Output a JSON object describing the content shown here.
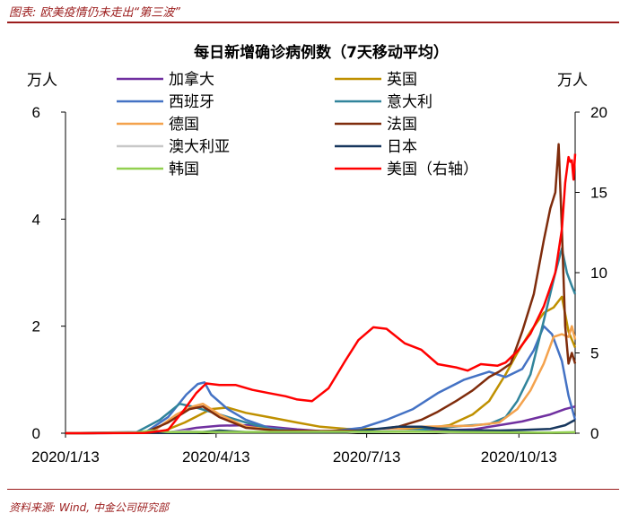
{
  "header": {
    "title": "图表: 欧美疫情仍未走出“第三波”"
  },
  "footer": {
    "source": "资料来源: Wind, 中金公司研究部"
  },
  "chart_data": {
    "type": "line",
    "title": "每日新增确诊病例数（7天移动平均）",
    "y_left_unit": "万人",
    "y_right_unit": "万人",
    "x_ticks": [
      "2020/1/13",
      "2020/4/13",
      "2020/7/13",
      "2020/10/13"
    ],
    "x_range": [
      "2020-01-13",
      "2020-11-16"
    ],
    "y_left_ticks": [
      0,
      2,
      4,
      6
    ],
    "y_right_ticks": [
      0,
      5,
      10,
      15,
      20
    ],
    "ylim_left": [
      0,
      6
    ],
    "ylim_right": [
      0,
      20
    ],
    "legend_position": "top",
    "series": [
      {
        "name": "加拿大",
        "color": "#7030a0",
        "axis": "left",
        "points": [
          [
            "2020-01-13",
            0
          ],
          [
            "2020-03-15",
            0.01
          ],
          [
            "2020-04-01",
            0.1
          ],
          [
            "2020-04-15",
            0.14
          ],
          [
            "2020-05-01",
            0.15
          ],
          [
            "2020-05-15",
            0.12
          ],
          [
            "2020-06-01",
            0.07
          ],
          [
            "2020-06-15",
            0.04
          ],
          [
            "2020-07-15",
            0.03
          ],
          [
            "2020-08-15",
            0.04
          ],
          [
            "2020-09-15",
            0.07
          ],
          [
            "2020-10-01",
            0.15
          ],
          [
            "2020-10-15",
            0.22
          ],
          [
            "2020-11-01",
            0.35
          ],
          [
            "2020-11-10",
            0.45
          ],
          [
            "2020-11-16",
            0.5
          ]
        ]
      },
      {
        "name": "英国",
        "color": "#bf9000",
        "axis": "left",
        "points": [
          [
            "2020-01-13",
            0
          ],
          [
            "2020-03-10",
            0.01
          ],
          [
            "2020-03-25",
            0.2
          ],
          [
            "2020-04-10",
            0.45
          ],
          [
            "2020-04-20",
            0.48
          ],
          [
            "2020-05-01",
            0.38
          ],
          [
            "2020-05-15",
            0.3
          ],
          [
            "2020-06-01",
            0.2
          ],
          [
            "2020-06-15",
            0.12
          ],
          [
            "2020-07-01",
            0.08
          ],
          [
            "2020-08-01",
            0.08
          ],
          [
            "2020-08-20",
            0.1
          ],
          [
            "2020-09-01",
            0.15
          ],
          [
            "2020-09-15",
            0.35
          ],
          [
            "2020-09-25",
            0.6
          ],
          [
            "2020-10-05",
            1.1
          ],
          [
            "2020-10-12",
            1.5
          ],
          [
            "2020-10-20",
            1.9
          ],
          [
            "2020-10-28",
            2.25
          ],
          [
            "2020-11-03",
            2.35
          ],
          [
            "2020-11-08",
            2.55
          ],
          [
            "2020-11-12",
            1.9
          ],
          [
            "2020-11-16",
            1.6
          ]
        ]
      },
      {
        "name": "西班牙",
        "color": "#4472c4",
        "axis": "left",
        "points": [
          [
            "2020-01-13",
            0
          ],
          [
            "2020-03-01",
            0.01
          ],
          [
            "2020-03-15",
            0.3
          ],
          [
            "2020-03-26",
            0.72
          ],
          [
            "2020-04-02",
            0.92
          ],
          [
            "2020-04-06",
            0.95
          ],
          [
            "2020-04-10",
            0.72
          ],
          [
            "2020-04-20",
            0.45
          ],
          [
            "2020-05-01",
            0.25
          ],
          [
            "2020-05-15",
            0.1
          ],
          [
            "2020-06-01",
            0.04
          ],
          [
            "2020-06-20",
            0.03
          ],
          [
            "2020-07-10",
            0.1
          ],
          [
            "2020-07-25",
            0.25
          ],
          [
            "2020-08-10",
            0.45
          ],
          [
            "2020-08-25",
            0.75
          ],
          [
            "2020-09-10",
            1.0
          ],
          [
            "2020-09-25",
            1.15
          ],
          [
            "2020-10-05",
            1.05
          ],
          [
            "2020-10-15",
            1.2
          ],
          [
            "2020-10-22",
            1.55
          ],
          [
            "2020-10-28",
            2.0
          ],
          [
            "2020-11-02",
            1.85
          ],
          [
            "2020-11-08",
            1.35
          ],
          [
            "2020-11-12",
            0.7
          ],
          [
            "2020-11-16",
            0.25
          ]
        ]
      },
      {
        "name": "意大利",
        "color": "#31849b",
        "axis": "left",
        "points": [
          [
            "2020-01-13",
            0
          ],
          [
            "2020-02-25",
            0.02
          ],
          [
            "2020-03-10",
            0.25
          ],
          [
            "2020-03-22",
            0.55
          ],
          [
            "2020-04-01",
            0.48
          ],
          [
            "2020-04-15",
            0.35
          ],
          [
            "2020-05-01",
            0.2
          ],
          [
            "2020-05-15",
            0.08
          ],
          [
            "2020-06-01",
            0.04
          ],
          [
            "2020-07-01",
            0.02
          ],
          [
            "2020-08-01",
            0.03
          ],
          [
            "2020-08-20",
            0.08
          ],
          [
            "2020-09-10",
            0.14
          ],
          [
            "2020-09-25",
            0.17
          ],
          [
            "2020-10-05",
            0.3
          ],
          [
            "2020-10-12",
            0.6
          ],
          [
            "2020-10-20",
            1.1
          ],
          [
            "2020-10-28",
            2.1
          ],
          [
            "2020-11-04",
            3.0
          ],
          [
            "2020-11-08",
            3.45
          ],
          [
            "2020-11-11",
            3.0
          ],
          [
            "2020-11-14",
            2.75
          ],
          [
            "2020-11-16",
            2.6
          ]
        ]
      },
      {
        "name": "德国",
        "color": "#f4a24d",
        "axis": "left",
        "points": [
          [
            "2020-01-13",
            0
          ],
          [
            "2020-03-05",
            0.01
          ],
          [
            "2020-03-20",
            0.35
          ],
          [
            "2020-03-30",
            0.5
          ],
          [
            "2020-04-05",
            0.55
          ],
          [
            "2020-04-15",
            0.35
          ],
          [
            "2020-05-01",
            0.12
          ],
          [
            "2020-05-20",
            0.05
          ],
          [
            "2020-06-15",
            0.04
          ],
          [
            "2020-07-15",
            0.05
          ],
          [
            "2020-08-15",
            0.12
          ],
          [
            "2020-09-15",
            0.14
          ],
          [
            "2020-10-01",
            0.2
          ],
          [
            "2020-10-12",
            0.45
          ],
          [
            "2020-10-20",
            0.8
          ],
          [
            "2020-10-28",
            1.3
          ],
          [
            "2020-11-03",
            1.8
          ],
          [
            "2020-11-08",
            1.85
          ],
          [
            "2020-11-12",
            1.8
          ],
          [
            "2020-11-14",
            2.0
          ],
          [
            "2020-11-16",
            1.75
          ]
        ]
      },
      {
        "name": "法国",
        "color": "#7f2c0c",
        "axis": "left",
        "points": [
          [
            "2020-01-13",
            0
          ],
          [
            "2020-03-01",
            0.01
          ],
          [
            "2020-03-15",
            0.2
          ],
          [
            "2020-03-28",
            0.45
          ],
          [
            "2020-04-05",
            0.5
          ],
          [
            "2020-04-15",
            0.3
          ],
          [
            "2020-05-01",
            0.1
          ],
          [
            "2020-05-20",
            0.05
          ],
          [
            "2020-06-15",
            0.04
          ],
          [
            "2020-07-15",
            0.05
          ],
          [
            "2020-08-01",
            0.12
          ],
          [
            "2020-08-15",
            0.25
          ],
          [
            "2020-08-25",
            0.4
          ],
          [
            "2020-09-05",
            0.6
          ],
          [
            "2020-09-15",
            0.8
          ],
          [
            "2020-09-25",
            1.05
          ],
          [
            "2020-10-01",
            1.15
          ],
          [
            "2020-10-08",
            1.3
          ],
          [
            "2020-10-15",
            1.9
          ],
          [
            "2020-10-22",
            2.6
          ],
          [
            "2020-10-28",
            3.6
          ],
          [
            "2020-11-01",
            4.2
          ],
          [
            "2020-11-04",
            4.5
          ],
          [
            "2020-11-06",
            5.4
          ],
          [
            "2020-11-08",
            3.8
          ],
          [
            "2020-11-10",
            2.0
          ],
          [
            "2020-11-12",
            1.3
          ],
          [
            "2020-11-14",
            1.5
          ],
          [
            "2020-11-16",
            1.3
          ]
        ]
      },
      {
        "name": "澳大利亚",
        "color": "#c8c8c8",
        "axis": "left",
        "points": [
          [
            "2020-01-13",
            0
          ],
          [
            "2020-03-15",
            0.02
          ],
          [
            "2020-03-25",
            0.04
          ],
          [
            "2020-04-15",
            0.01
          ],
          [
            "2020-07-01",
            0.01
          ],
          [
            "2020-07-25",
            0.05
          ],
          [
            "2020-08-10",
            0.04
          ],
          [
            "2020-09-01",
            0.01
          ],
          [
            "2020-11-16",
            0.01
          ]
        ]
      },
      {
        "name": "日本",
        "color": "#17375e",
        "axis": "left",
        "points": [
          [
            "2020-01-13",
            0
          ],
          [
            "2020-04-01",
            0.01
          ],
          [
            "2020-04-15",
            0.05
          ],
          [
            "2020-05-01",
            0.02
          ],
          [
            "2020-07-01",
            0.02
          ],
          [
            "2020-08-01",
            0.12
          ],
          [
            "2020-08-15",
            0.12
          ],
          [
            "2020-09-01",
            0.06
          ],
          [
            "2020-10-01",
            0.05
          ],
          [
            "2020-10-15",
            0.06
          ],
          [
            "2020-11-01",
            0.08
          ],
          [
            "2020-11-10",
            0.15
          ],
          [
            "2020-11-16",
            0.25
          ]
        ]
      },
      {
        "name": "韩国",
        "color": "#92d050",
        "axis": "left",
        "points": [
          [
            "2020-01-13",
            0
          ],
          [
            "2020-02-25",
            0.01
          ],
          [
            "2020-03-05",
            0.05
          ],
          [
            "2020-03-15",
            0.02
          ],
          [
            "2020-08-25",
            0.03
          ],
          [
            "2020-09-10",
            0.02
          ],
          [
            "2020-11-01",
            0.01
          ],
          [
            "2020-11-16",
            0.02
          ]
        ]
      },
      {
        "name": "美国（右轴）",
        "color": "#ff0000",
        "axis": "right",
        "points": [
          [
            "2020-01-13",
            0
          ],
          [
            "2020-03-01",
            0.01
          ],
          [
            "2020-03-15",
            0.2
          ],
          [
            "2020-03-25",
            1.5
          ],
          [
            "2020-04-01",
            2.5
          ],
          [
            "2020-04-07",
            3.1
          ],
          [
            "2020-04-15",
            3.0
          ],
          [
            "2020-04-25",
            3.0
          ],
          [
            "2020-05-05",
            2.7
          ],
          [
            "2020-05-15",
            2.5
          ],
          [
            "2020-05-25",
            2.3
          ],
          [
            "2020-06-01",
            2.1
          ],
          [
            "2020-06-10",
            2.0
          ],
          [
            "2020-06-20",
            2.8
          ],
          [
            "2020-06-30",
            4.5
          ],
          [
            "2020-07-08",
            5.8
          ],
          [
            "2020-07-17",
            6.6
          ],
          [
            "2020-07-25",
            6.5
          ],
          [
            "2020-08-05",
            5.6
          ],
          [
            "2020-08-15",
            5.2
          ],
          [
            "2020-08-25",
            4.3
          ],
          [
            "2020-09-05",
            4.1
          ],
          [
            "2020-09-12",
            3.9
          ],
          [
            "2020-09-20",
            4.3
          ],
          [
            "2020-09-30",
            4.2
          ],
          [
            "2020-10-05",
            4.4
          ],
          [
            "2020-10-12",
            5.1
          ],
          [
            "2020-10-20",
            6.2
          ],
          [
            "2020-10-28",
            7.9
          ],
          [
            "2020-11-04",
            10.0
          ],
          [
            "2020-11-08",
            12.7
          ],
          [
            "2020-11-10",
            15.6
          ],
          [
            "2020-11-12",
            17.2
          ],
          [
            "2020-11-13",
            16.9
          ],
          [
            "2020-11-14",
            17.0
          ],
          [
            "2020-11-15",
            15.8
          ],
          [
            "2020-11-16",
            17.4
          ]
        ]
      }
    ]
  }
}
